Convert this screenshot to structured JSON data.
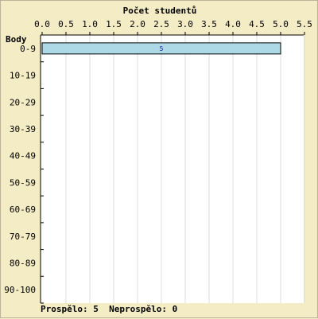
{
  "chart_data": {
    "type": "bar",
    "orientation": "horizontal",
    "title": "Počet studentů",
    "ylabel": "Body",
    "xlabel": "",
    "categories": [
      "0-9",
      "10-19",
      "20-29",
      "30-39",
      "40-49",
      "50-59",
      "60-69",
      "70-79",
      "80-89",
      "90-100"
    ],
    "values": [
      5,
      0,
      0,
      0,
      0,
      0,
      0,
      0,
      0,
      0
    ],
    "data_labels": [
      "5",
      "",
      "",
      "",
      "",
      "",
      "",
      "",
      "",
      ""
    ],
    "xlim": [
      0,
      5.5
    ],
    "xticks": [
      "0.0",
      "0.5",
      "1.0",
      "1.5",
      "2.0",
      "2.5",
      "3.0",
      "3.5",
      "4.0",
      "4.5",
      "5.0",
      "5.5"
    ],
    "grid": true,
    "bar_color": "#add8e6",
    "bar_border_color": "#000000",
    "background_color": "#f3ecc5",
    "plot_background_color": "#ffffff"
  },
  "summary": {
    "passed_label": "Prospělo:",
    "passed_value": "5",
    "failed_label": "Neprospělo:",
    "failed_value": "0"
  }
}
